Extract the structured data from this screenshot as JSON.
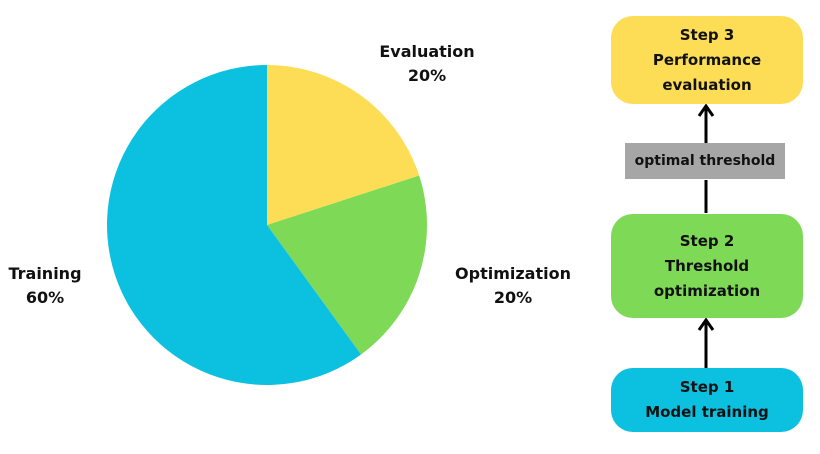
{
  "chart_data": {
    "type": "pie",
    "title": "",
    "slices": [
      {
        "label": "Evaluation",
        "value": 20,
        "value_label": "20%",
        "color": "#fedd56"
      },
      {
        "label": "Optimization",
        "value": 20,
        "value_label": "20%",
        "color": "#7ed957"
      },
      {
        "label": "Training",
        "value": 60,
        "value_label": "60%",
        "color": "#0cc0df"
      }
    ],
    "start": "top",
    "direction": "clockwise"
  },
  "flow": {
    "steps": [
      {
        "id": "step3",
        "title": "Step 3",
        "lines": [
          "Performance",
          "evaluation"
        ],
        "color": "#fedd56"
      },
      {
        "id": "step2",
        "title": "Step 2",
        "lines": [
          "Threshold",
          "optimization"
        ],
        "color": "#7ed957"
      },
      {
        "id": "step1",
        "title": "Step 1",
        "lines": [
          "Model training"
        ],
        "color": "#0cc0df"
      }
    ],
    "connector_label": "optimal threshold",
    "connector_color": "#a6a6a6",
    "arrow_color": "#000000"
  }
}
